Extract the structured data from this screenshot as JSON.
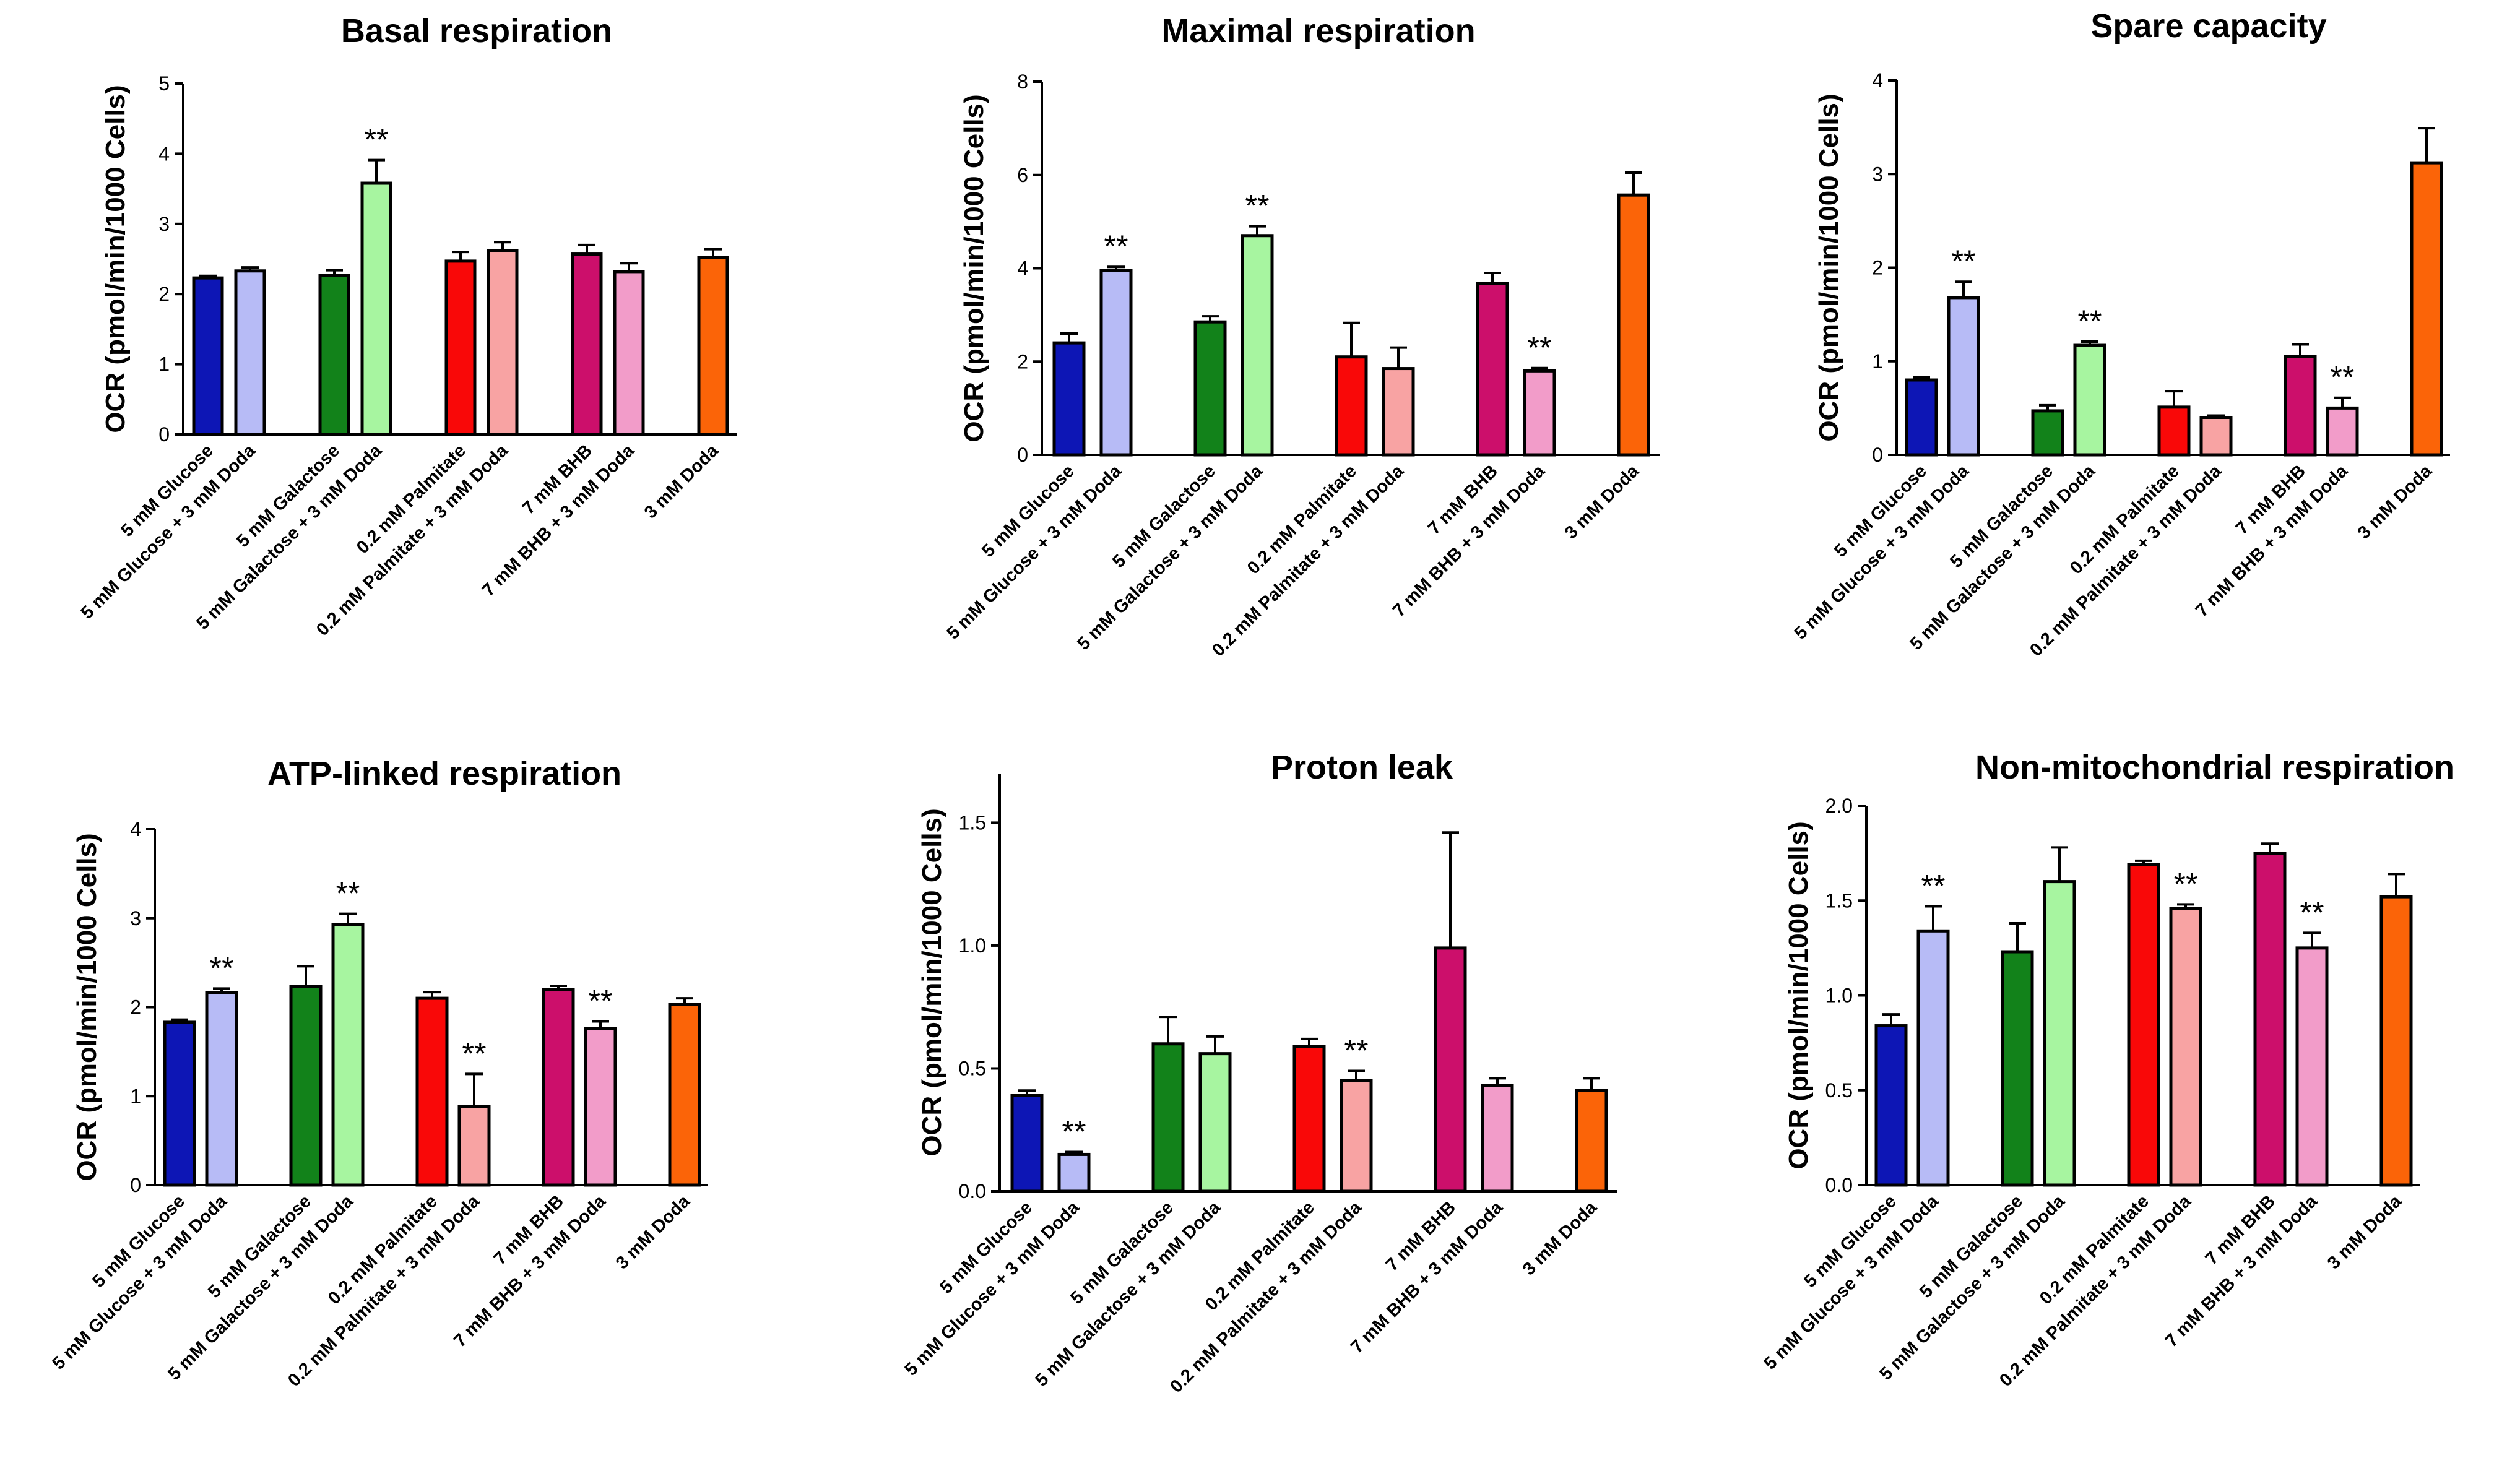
{
  "chart_data": [
    {
      "type": "bar",
      "title": "Basal respiration",
      "ylabel": "OCR (pmol/min/1000 Cells)",
      "xlabel": "",
      "ylim": [
        0,
        5
      ],
      "yticks": [
        "0",
        "1",
        "2",
        "3",
        "4",
        "5"
      ],
      "categories": [
        "5 mM Glucose",
        "5 mM Glucose + 3 mM Doda",
        "5 mM Galactose",
        "5 mM Galactose + 3 mM Doda",
        "0.2 mM Palmitate",
        "0.2 mM Palmitate + 3 mM Doda",
        "7 mM BHB",
        "7 mM BHB + 3 mM Doda",
        "3 mM Doda"
      ],
      "values": [
        2.23,
        2.33,
        2.27,
        3.58,
        2.47,
        2.62,
        2.57,
        2.32,
        2.52
      ],
      "errors": [
        0.03,
        0.05,
        0.07,
        0.33,
        0.13,
        0.12,
        0.13,
        0.12,
        0.12
      ],
      "significance": [
        "",
        "",
        "",
        "**",
        "",
        "",
        "",
        "",
        ""
      ]
    },
    {
      "type": "bar",
      "title": "Maximal respiration",
      "ylabel": "OCR (pmol/min/1000 Cells)",
      "xlabel": "",
      "ylim": [
        0,
        8
      ],
      "yticks": [
        "0",
        "2",
        "4",
        "6",
        "8"
      ],
      "categories": [
        "5 mM Glucose",
        "5 mM Glucose + 3 mM Doda",
        "5 mM Galactose",
        "5 mM Galactose + 3 mM Doda",
        "0.2 mM Palmitate",
        "0.2 mM Palmitate + 3 mM Doda",
        "7 mM BHB",
        "7 mM BHB + 3 mM Doda",
        "3 mM Doda"
      ],
      "values": [
        2.4,
        3.95,
        2.85,
        4.7,
        2.1,
        1.85,
        3.67,
        1.8,
        5.57
      ],
      "errors": [
        0.2,
        0.08,
        0.12,
        0.2,
        0.73,
        0.45,
        0.23,
        0.06,
        0.48
      ],
      "significance": [
        "",
        "**",
        "",
        "**",
        "",
        "",
        "",
        "**",
        ""
      ]
    },
    {
      "type": "bar",
      "title": "Spare capacity",
      "ylabel": "OCR (pmol/min/1000 Cells)",
      "xlabel": "",
      "ylim": [
        0,
        4
      ],
      "yticks": [
        "0",
        "1",
        "2",
        "3",
        "4"
      ],
      "categories": [
        "5 mM Glucose",
        "5 mM Glucose + 3 mM Doda",
        "5 mM Galactose",
        "5 mM Galactose + 3 mM Doda",
        "0.2 mM Palmitate",
        "0.2 mM Palmitate + 3 mM Doda",
        "7 mM BHB",
        "7 mM BHB + 3 mM Doda",
        "3 mM Doda"
      ],
      "values": [
        0.8,
        1.68,
        0.47,
        1.17,
        0.51,
        0.4,
        1.05,
        0.5,
        3.12
      ],
      "errors": [
        0.03,
        0.17,
        0.06,
        0.04,
        0.17,
        0.02,
        0.13,
        0.11,
        0.37
      ],
      "significance": [
        "",
        "**",
        "",
        "**",
        "",
        "",
        "",
        "**",
        ""
      ]
    },
    {
      "type": "bar",
      "title": "ATP-linked respiration",
      "ylabel": "OCR (pmol/min/1000 Cells)",
      "xlabel": "",
      "ylim": [
        0,
        4
      ],
      "yticks": [
        "0",
        "1",
        "2",
        "3",
        "4"
      ],
      "categories": [
        "5 mM Glucose",
        "5 mM Glucose + 3 mM Doda",
        "5 mM Galactose",
        "5 mM Galactose + 3 mM Doda",
        "0.2 mM Palmitate",
        "0.2 mM Palmitate + 3 mM Doda",
        "7 mM BHB",
        "7 mM BHB + 3 mM Doda",
        "3 mM Doda"
      ],
      "values": [
        1.83,
        2.16,
        2.23,
        2.93,
        2.1,
        0.88,
        2.2,
        1.76,
        2.03
      ],
      "errors": [
        0.03,
        0.05,
        0.23,
        0.12,
        0.07,
        0.37,
        0.04,
        0.08,
        0.07
      ],
      "significance": [
        "",
        "**",
        "",
        "**",
        "",
        "**",
        "",
        "**",
        ""
      ]
    },
    {
      "type": "bar",
      "title": "Proton leak",
      "ylabel": "OCR (pmol/min/1000 Cells)",
      "xlabel": "",
      "ylim": [
        0,
        1.7
      ],
      "yticks": [
        "0.0",
        "0.5",
        "1.0",
        "1.5"
      ],
      "ytick_values": [
        0,
        0.5,
        1.0,
        1.5
      ],
      "categories": [
        "5 mM Glucose",
        "5 mM Glucose + 3 mM Doda",
        "5 mM Galactose",
        "5 mM Galactose + 3 mM Doda",
        "0.2 mM Palmitate",
        "0.2 mM Palmitate + 3 mM Doda",
        "7 mM BHB",
        "7 mM BHB + 3 mM Doda",
        "3 mM Doda"
      ],
      "values": [
        0.39,
        0.15,
        0.6,
        0.56,
        0.59,
        0.45,
        0.99,
        0.43,
        0.41
      ],
      "errors": [
        0.02,
        0.01,
        0.11,
        0.07,
        0.03,
        0.04,
        0.47,
        0.03,
        0.05
      ],
      "significance": [
        "",
        "**",
        "",
        "",
        "",
        "**",
        "",
        "",
        ""
      ]
    },
    {
      "type": "bar",
      "title": "Non-mitochondrial respiration",
      "ylabel": "OCR (pmol/min/1000 Cells)",
      "xlabel": "",
      "ylim": [
        0,
        2.0
      ],
      "yticks": [
        "0.0",
        "0.5",
        "1.0",
        "1.5",
        "2.0"
      ],
      "ytick_values": [
        0,
        0.5,
        1.0,
        1.5,
        2.0
      ],
      "categories": [
        "5 mM Glucose",
        "5 mM Glucose + 3 mM Doda",
        "5 mM Galactose",
        "5 mM Galactose + 3 mM Doda",
        "0.2 mM Palmitate",
        "0.2 mM Palmitate + 3 mM Doda",
        "7 mM BHB",
        "7 mM BHB + 3 mM Doda",
        "3 mM Doda"
      ],
      "values": [
        0.84,
        1.34,
        1.23,
        1.6,
        1.69,
        1.46,
        1.75,
        1.25,
        1.52
      ],
      "errors": [
        0.06,
        0.13,
        0.15,
        0.18,
        0.02,
        0.02,
        0.05,
        0.08,
        0.12
      ],
      "significance": [
        "",
        "**",
        "",
        "",
        "",
        "**",
        "",
        "**",
        ""
      ]
    }
  ],
  "bar_colors": [
    "#0d16b5",
    "#b7bbf6",
    "#12821a",
    "#a7f5a0",
    "#f90808",
    "#f8a3a3",
    "#cc0f6b",
    "#f29cc9",
    "#fb6408"
  ],
  "significance_marker": "**"
}
